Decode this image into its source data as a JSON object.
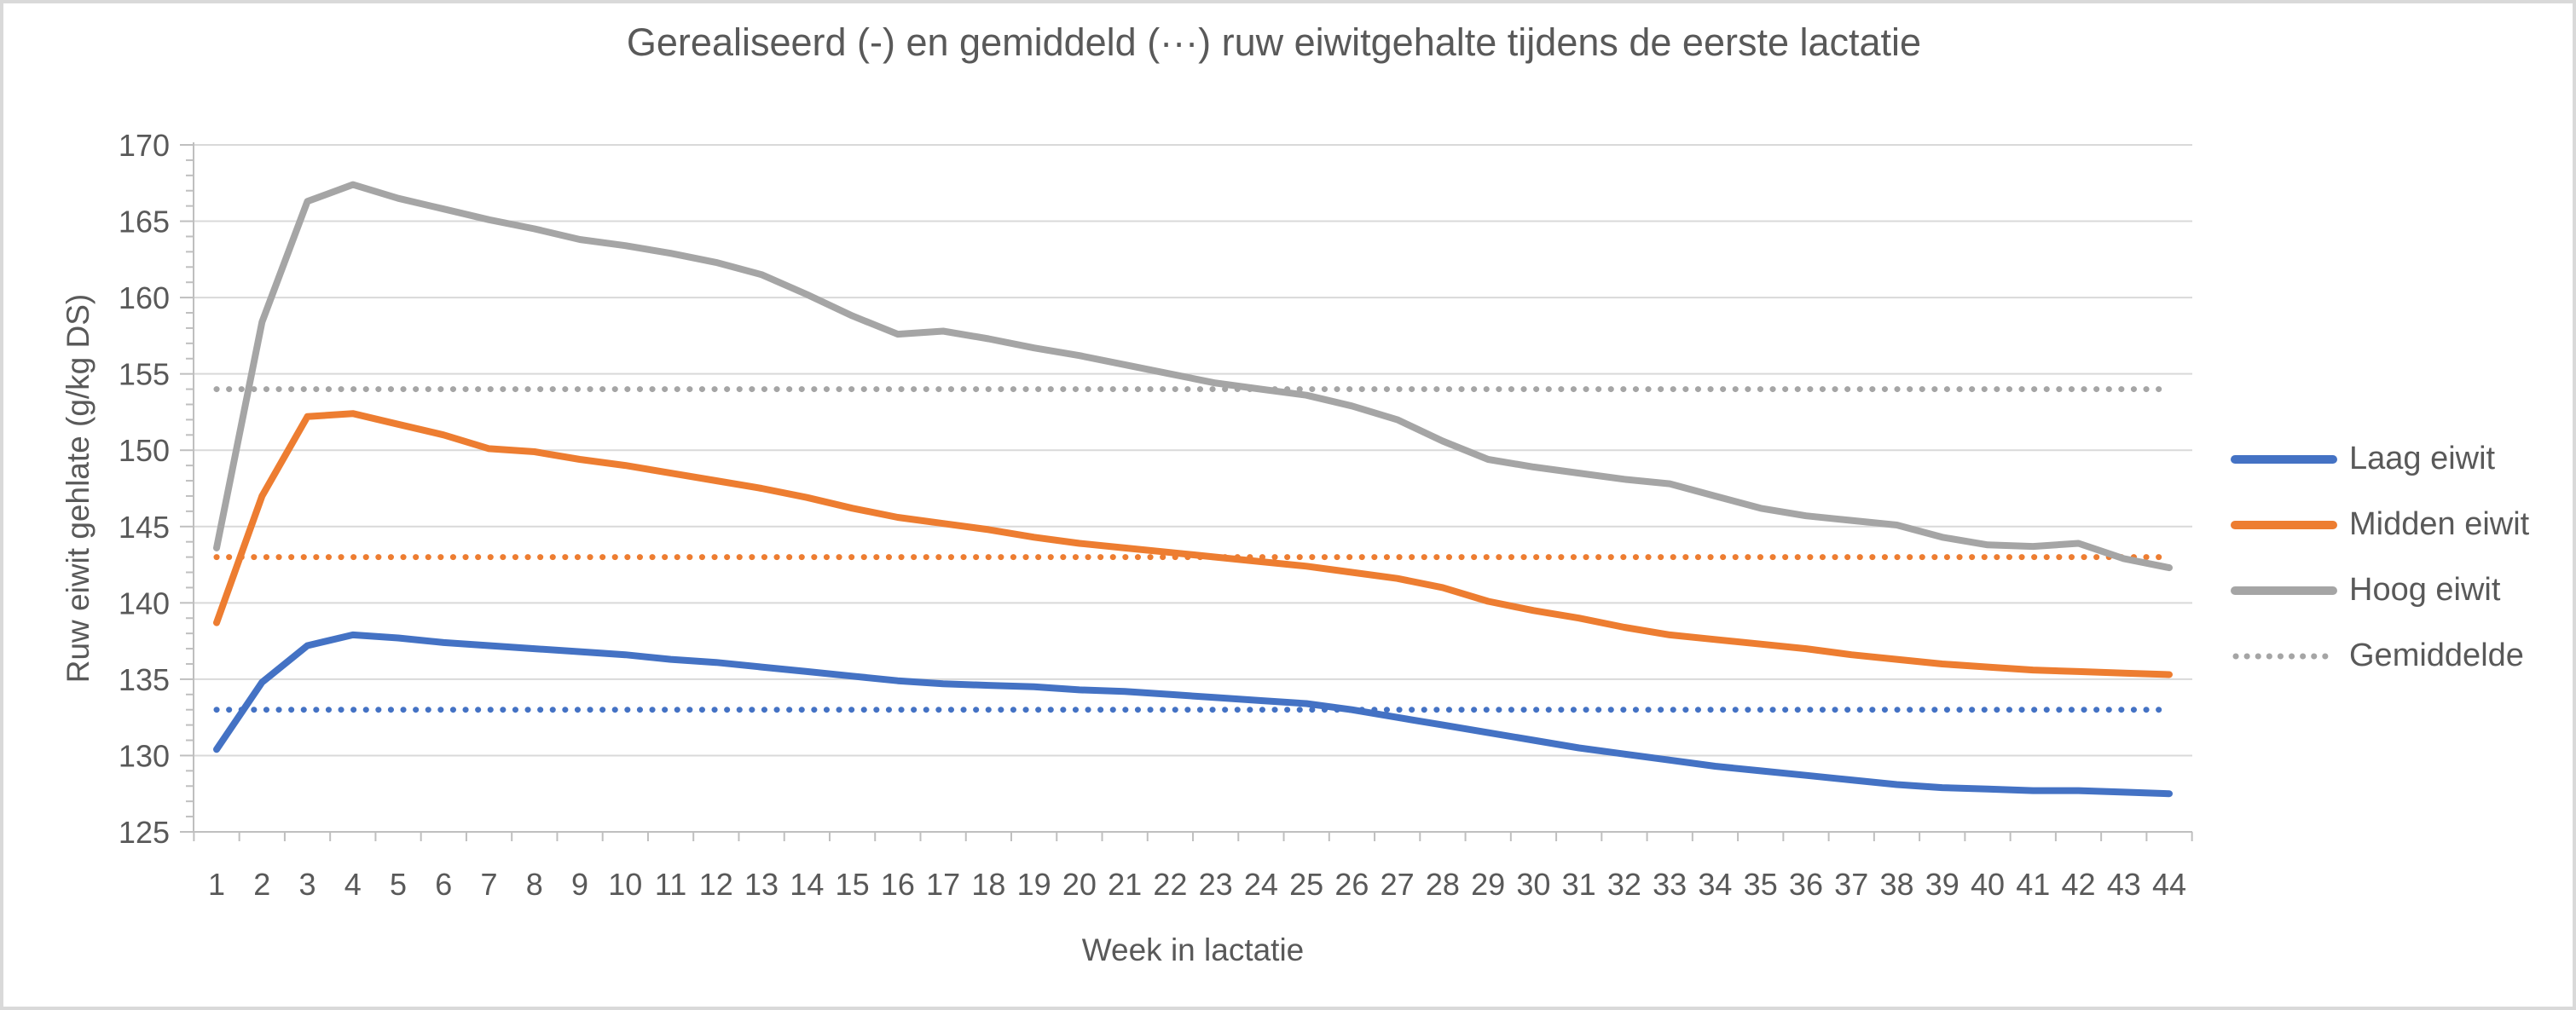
{
  "chart_data": {
    "type": "line",
    "title": "Gerealiseerd (-) en gemiddeld (···) ruw eiwitgehalte tijdens de eerste lactatie",
    "xlabel": "Week in lactatie",
    "ylabel": "Ruw eiwit gehlate (g/kg DS)",
    "x_categories": [
      1,
      2,
      3,
      4,
      5,
      6,
      7,
      8,
      9,
      10,
      11,
      12,
      13,
      14,
      15,
      16,
      17,
      18,
      19,
      20,
      21,
      22,
      23,
      24,
      25,
      26,
      27,
      28,
      29,
      30,
      31,
      32,
      33,
      34,
      35,
      36,
      37,
      38,
      39,
      40,
      41,
      42,
      43,
      44
    ],
    "ylim": [
      125,
      170
    ],
    "y_ticks": [
      125,
      130,
      135,
      140,
      145,
      150,
      155,
      160,
      165,
      170
    ],
    "grid": "horizontal",
    "legend_position": "right",
    "series": [
      {
        "name": "Laag eiwit",
        "color": "#4472C4",
        "line": "solid",
        "average": 133,
        "values": [
          130.4,
          134.8,
          137.2,
          137.9,
          137.7,
          137.4,
          137.2,
          137.0,
          136.8,
          136.6,
          136.3,
          136.1,
          135.8,
          135.5,
          135.2,
          134.9,
          134.7,
          134.6,
          134.5,
          134.3,
          134.2,
          134.0,
          133.8,
          133.6,
          133.4,
          133.0,
          132.5,
          132.0,
          131.5,
          131.0,
          130.5,
          130.1,
          129.7,
          129.3,
          129.0,
          128.7,
          128.4,
          128.1,
          127.9,
          127.8,
          127.7,
          127.7,
          127.6,
          127.5
        ]
      },
      {
        "name": "Midden eiwit",
        "color": "#ED7D31",
        "line": "solid",
        "average": 143,
        "values": [
          138.7,
          147.0,
          152.2,
          152.4,
          151.7,
          151.0,
          150.1,
          149.9,
          149.4,
          149.0,
          148.5,
          148.0,
          147.5,
          146.9,
          146.2,
          145.6,
          145.2,
          144.8,
          144.3,
          143.9,
          143.6,
          143.3,
          143.0,
          142.7,
          142.4,
          142.0,
          141.6,
          141.0,
          140.1,
          139.5,
          139.0,
          138.4,
          137.9,
          137.6,
          137.3,
          137.0,
          136.6,
          136.3,
          136.0,
          135.8,
          135.6,
          135.5,
          135.4,
          135.3
        ]
      },
      {
        "name": "Hoog eiwit",
        "color": "#A5A5A5",
        "line": "solid",
        "average": 154,
        "values": [
          143.6,
          158.4,
          166.3,
          167.4,
          166.5,
          165.8,
          165.1,
          164.5,
          163.8,
          163.4,
          162.9,
          162.3,
          161.5,
          160.2,
          158.8,
          157.6,
          157.8,
          157.3,
          156.7,
          156.2,
          155.6,
          155.0,
          154.4,
          154.0,
          153.6,
          152.9,
          152.0,
          150.6,
          149.4,
          148.9,
          148.5,
          148.1,
          147.8,
          147.0,
          146.2,
          145.7,
          145.4,
          145.1,
          144.3,
          143.8,
          143.7,
          143.9,
          142.9,
          142.3
        ]
      }
    ],
    "legend_items": [
      {
        "label": "Laag eiwit",
        "color": "#4472C4",
        "style": "solid"
      },
      {
        "label": "Midden eiwit",
        "color": "#ED7D31",
        "style": "solid"
      },
      {
        "label": "Hoog eiwit",
        "color": "#A5A5A5",
        "style": "solid"
      },
      {
        "label": "Gemiddelde",
        "color": "#A5A5A5",
        "style": "dotted"
      }
    ]
  }
}
